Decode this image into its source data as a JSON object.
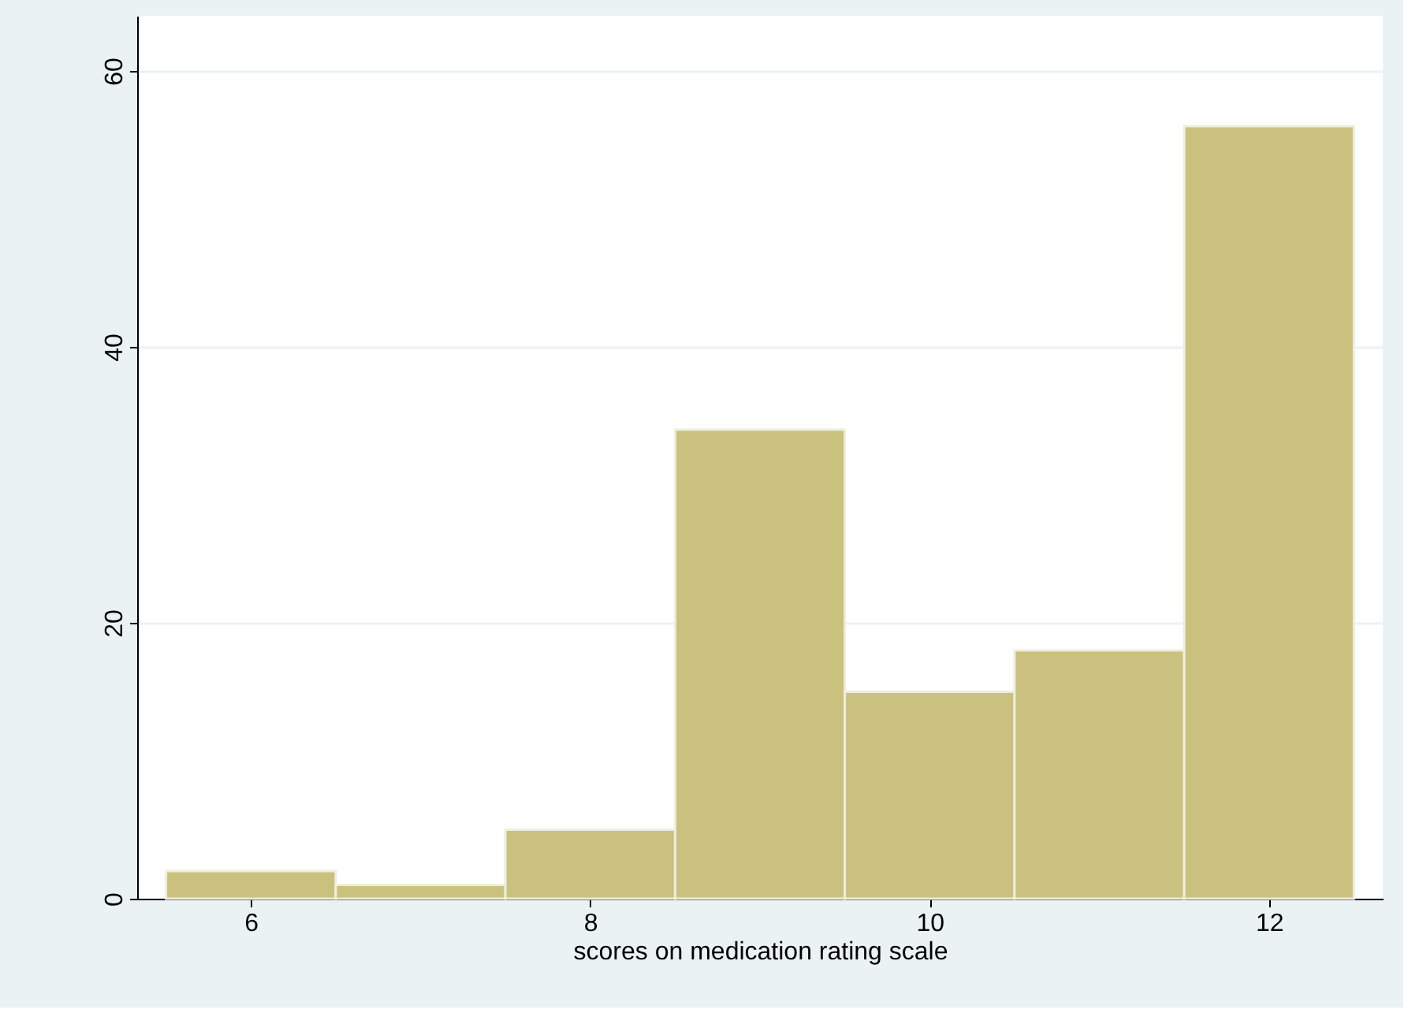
{
  "chart_data": {
    "type": "histogram",
    "xlabel": "scores on medication rating scale",
    "bins": [
      5.5,
      6.5,
      7.5,
      8.5,
      9.5,
      10.5,
      11.5,
      12.5
    ],
    "values": [
      2,
      1,
      5,
      34,
      15,
      18,
      56
    ],
    "color": "#cbc17f",
    "xlim": [
      5.33,
      12.67
    ],
    "xticks": [
      6,
      8,
      10,
      12
    ],
    "ylim": [
      0,
      64
    ],
    "yticks": [
      0,
      20,
      40,
      60
    ],
    "grid": "y"
  }
}
